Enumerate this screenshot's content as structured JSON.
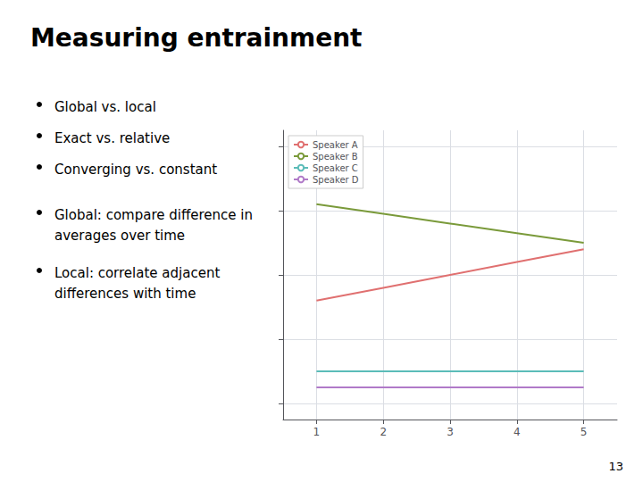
{
  "chart_data": {
    "type": "line",
    "title": "Measuring entrainment",
    "annotations": [
      [
        "Global vs. local",
        "Exact vs. relative",
        "Converging vs. constant"
      ],
      [
        "Global: compare difference in\naverages over time",
        "Local: correlate adjacent\ndifferences with time"
      ],
      [
        "13"
      ]
    ],
    "x": [
      1,
      2,
      3,
      4,
      5
    ],
    "series": [
      {
        "name": "Speaker A",
        "color": "#e07070",
        "values": [
          0.32,
          0.36,
          0.4,
          0.44,
          0.48
        ]
      },
      {
        "name": "Speaker B",
        "color": "#7a9a3a",
        "values": [
          0.62,
          0.59,
          0.56,
          0.53,
          0.5
        ]
      },
      {
        "name": "Speaker C",
        "color": "#5bbcb8",
        "values": [
          0.1,
          0.1,
          0.1,
          0.1,
          0.1
        ]
      },
      {
        "name": "Speaker D",
        "color": "#b07ac8",
        "values": [
          0.05,
          0.05,
          0.05,
          0.05,
          0.05
        ]
      }
    ],
    "xlim": [
      0.5,
      5.5
    ],
    "xticks": [
      1,
      2,
      3,
      4,
      5
    ],
    "ylim": [
      -0.05,
      0.85
    ],
    "yticks": [
      0.0,
      0.2,
      0.4,
      0.6,
      0.8
    ],
    "grid": true,
    "legend": "upper left",
    "tick_labels": "x"
  }
}
